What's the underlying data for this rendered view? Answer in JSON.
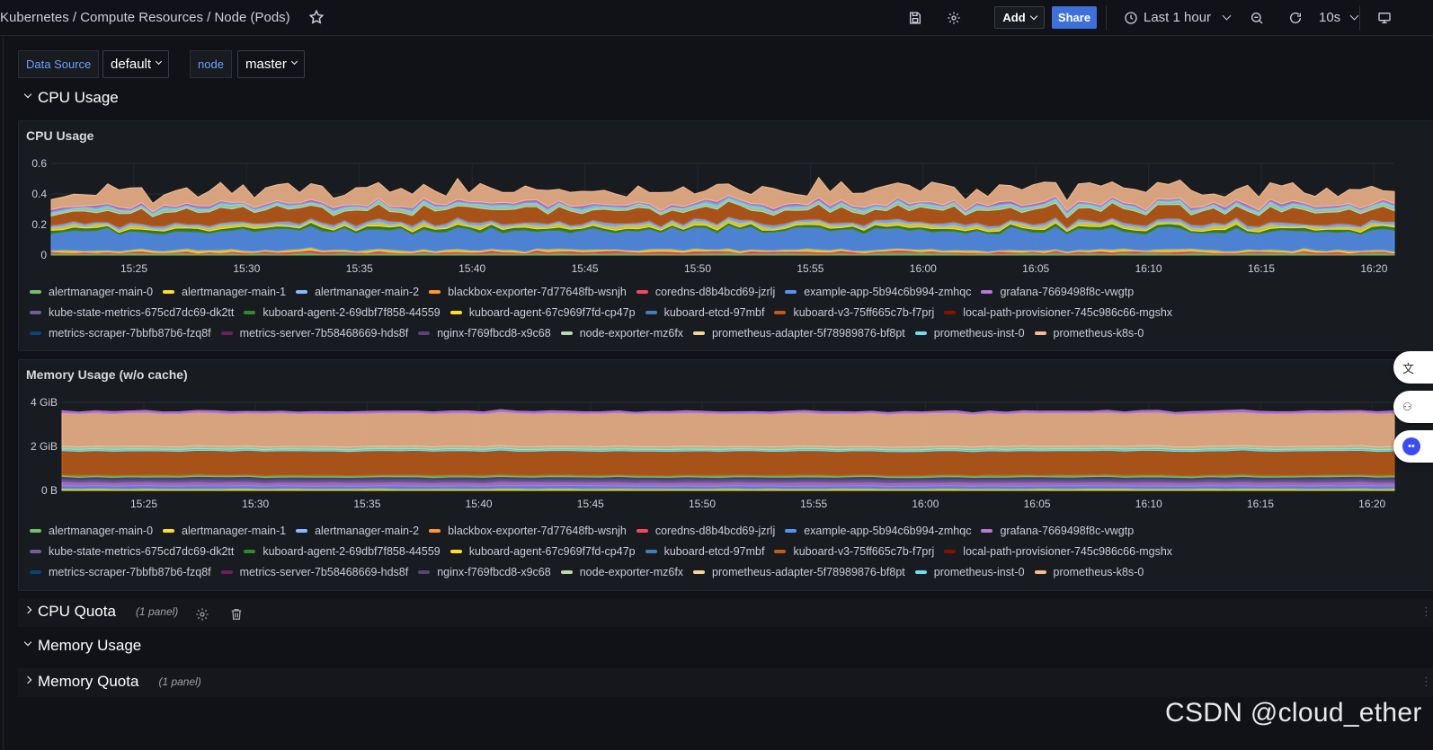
{
  "header": {
    "breadcrumb": "Kubernetes / Compute Resources / Node (Pods)",
    "add_label": "Add",
    "share_label": "Share",
    "time_range": "Last 1 hour",
    "refresh_interval": "10s"
  },
  "variables": [
    {
      "label": "Data Source",
      "value": "default"
    },
    {
      "label": "node",
      "value": "master"
    }
  ],
  "rows": {
    "cpu_usage": {
      "title": "CPU Usage"
    },
    "cpu_quota": {
      "title": "CPU Quota",
      "count": "(1 panel)"
    },
    "memory_usage": {
      "title": "Memory Usage"
    },
    "memory_quota": {
      "title": "Memory Quota",
      "count": "(1 panel)"
    }
  },
  "panels": {
    "cpu": {
      "title": "CPU Usage",
      "y_ticks": [
        "0.6",
        "0.4",
        "0.2",
        "0"
      ],
      "x_ticks": [
        "15:25",
        "15:30",
        "15:35",
        "15:40",
        "15:45",
        "15:50",
        "15:55",
        "16:00",
        "16:05",
        "16:10",
        "16:15",
        "16:20"
      ]
    },
    "mem": {
      "title": "Memory Usage (w/o cache)",
      "y_ticks": [
        "4 GiB",
        "2 GiB",
        "0 B"
      ],
      "x_ticks": [
        "15:25",
        "15:30",
        "15:35",
        "15:40",
        "15:45",
        "15:50",
        "15:55",
        "16:00",
        "16:05",
        "16:10",
        "16:15",
        "16:20"
      ]
    }
  },
  "legend": [
    {
      "name": "alertmanager-main-0",
      "color": "#73bf69"
    },
    {
      "name": "alertmanager-main-1",
      "color": "#fade2a"
    },
    {
      "name": "alertmanager-main-2",
      "color": "#8ab8ff"
    },
    {
      "name": "blackbox-exporter-7d77648fb-wsnjh",
      "color": "#ff9830"
    },
    {
      "name": "coredns-d8b4bcd69-jzrlj",
      "color": "#f2495c"
    },
    {
      "name": "example-app-5b94c6b994-zmhqc",
      "color": "#5794f2"
    },
    {
      "name": "grafana-7669498f8c-vwgtp",
      "color": "#b877d9"
    },
    {
      "name": "kube-state-metrics-675cd7dc69-dk2tt",
      "color": "#705da0"
    },
    {
      "name": "kuboard-agent-2-69dbf7f858-44559",
      "color": "#37872d"
    },
    {
      "name": "kuboard-agent-67c969f7fd-cp47p",
      "color": "#fade2a"
    },
    {
      "name": "kuboard-etcd-97mbf",
      "color": "#447ebc"
    },
    {
      "name": "kuboard-v3-75ff665c7b-f7prj",
      "color": "#c15c17"
    },
    {
      "name": "local-path-provisioner-745c986c66-mgshx",
      "color": "#890f02"
    },
    {
      "name": "metrics-scraper-7bbfb87b6-fzq8f",
      "color": "#0a437c"
    },
    {
      "name": "metrics-server-7b58468669-hds8f",
      "color": "#6d1f62"
    },
    {
      "name": "nginx-f769fbcd8-x9c68",
      "color": "#584477"
    },
    {
      "name": "node-exporter-mz6fx",
      "color": "#b7dbab"
    },
    {
      "name": "prometheus-adapter-5f78989876-bf8pt",
      "color": "#f4d598"
    },
    {
      "name": "prometheus-inst-0",
      "color": "#70dbed"
    },
    {
      "name": "prometheus-k8s-0",
      "color": "#f9ba8f"
    }
  ],
  "watermark": "CSDN @cloud_ether"
}
